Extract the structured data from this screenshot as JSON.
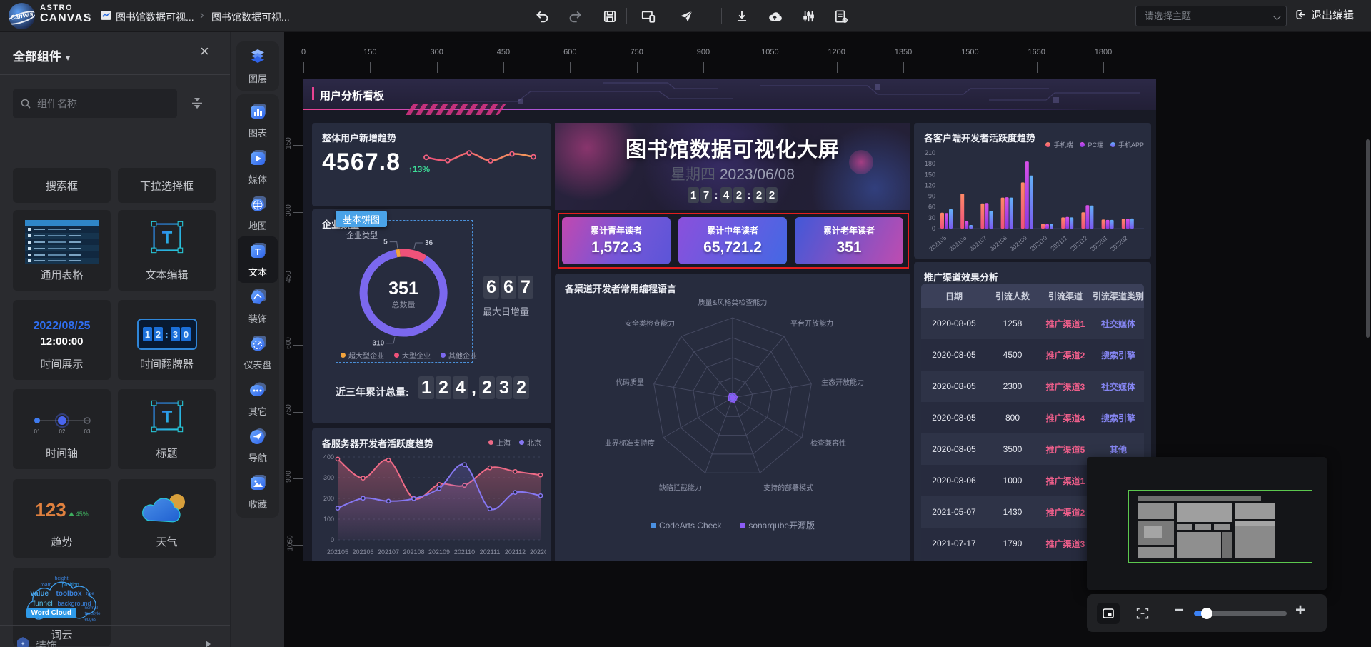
{
  "topbar": {
    "logo_text": "Canvas",
    "brand_top": "ASTRO",
    "brand_bottom": "CANVAS",
    "breadcrumb_tab1": "图书馆数据可视...",
    "breadcrumb_tab2": "图书馆数据可视...",
    "theme_placeholder": "请选择主题",
    "exit_label": "退出编辑"
  },
  "left_panel": {
    "title": "全部组件",
    "search_placeholder": "组件名称",
    "cards": [
      {
        "label": "搜索框"
      },
      {
        "label": "下拉选择框"
      },
      {
        "label": "通用表格"
      },
      {
        "label": "文本编辑"
      },
      {
        "label": "时间展示",
        "thumb_date": "2022/08/25",
        "thumb_time": "12:00:00"
      },
      {
        "label": "时间翻牌器",
        "thumb_clock": "12:30"
      },
      {
        "label": "时间轴",
        "steps": [
          "01",
          "02",
          "03"
        ]
      },
      {
        "label": "标题"
      },
      {
        "label": "趋势",
        "thumb_value": "123",
        "thumb_delta": "45%"
      },
      {
        "label": "天气"
      },
      {
        "label": "词云",
        "thumb_chip": "Word Cloud",
        "thumb_words": [
          "height",
          "roam",
          "position",
          "value",
          "toolbox",
          "type",
          "funnel",
          "background",
          "normal",
          "textstyle",
          "edges"
        ]
      }
    ],
    "footer_label": "装饰"
  },
  "icon_rail": {
    "layers_label": "图层",
    "items": [
      {
        "label": "图表"
      },
      {
        "label": "媒体"
      },
      {
        "label": "地图"
      },
      {
        "label": "文本"
      },
      {
        "label": "装饰"
      },
      {
        "label": "仪表盘"
      },
      {
        "label": "其它"
      },
      {
        "label": "导航"
      },
      {
        "label": "收藏"
      }
    ]
  },
  "canvas": {
    "h_ruler": [
      0,
      150,
      300,
      450,
      600,
      750,
      900,
      1050,
      1200,
      1350,
      1500,
      1650,
      1800
    ],
    "v_ruler": [
      150,
      300,
      450,
      600,
      750,
      900,
      1050
    ]
  },
  "dashboard": {
    "page_header": "用户分析看板",
    "title_block": {
      "title": "图书馆数据可视化大屏",
      "weekday": "星期四",
      "date": "2023/06/08",
      "clock": "17:42:22"
    },
    "stat_cards": [
      {
        "label": "累计青年读者",
        "value": "1,572.3"
      },
      {
        "label": "累计中年读者",
        "value": "65,721.2"
      },
      {
        "label": "累计老年读者",
        "value": "351"
      }
    ],
    "trend_panel": {
      "title": "整体用户新增趋势",
      "value": "4567.8",
      "delta": "↑13%"
    },
    "pie_panel": {
      "header": "企业数量",
      "tooltip_chip": "基本饼图",
      "max_daily_value": "667",
      "max_daily_label": "最大日增量",
      "total_label": "近三年累计总量:",
      "total_value": "124,232"
    }
  },
  "chart_data": [
    {
      "type": "line",
      "name": "整体用户新增趋势-sparkline",
      "x": [
        1,
        2,
        3,
        4,
        5,
        6
      ],
      "values": [
        58,
        45,
        76,
        44,
        72,
        60
      ],
      "ylim": [
        0,
        100
      ],
      "color": "#f0527a"
    },
    {
      "type": "pie",
      "title": "企业类型",
      "center_value": "351",
      "center_label": "总数量",
      "slices": [
        {
          "name": "超大型企业",
          "value": 5,
          "color": "#f2a33c"
        },
        {
          "name": "大型企业",
          "value": 36,
          "color": "#f0527a"
        },
        {
          "name": "其他企业",
          "value": 310,
          "color": "#7b68ee"
        }
      ]
    },
    {
      "type": "area",
      "title": "各服务器开发者活跃度趋势",
      "categories": [
        "202105",
        "202106",
        "202107",
        "202108",
        "202109",
        "202110",
        "202111",
        "202112",
        "202201"
      ],
      "series": [
        {
          "name": "上海",
          "color": "#ee6a86",
          "values": [
            390,
            298,
            385,
            200,
            268,
            263,
            348,
            330,
            313
          ]
        },
        {
          "name": "北京",
          "color": "#8677f2",
          "values": [
            153,
            201,
            187,
            199,
            248,
            363,
            150,
            229,
            213
          ]
        }
      ],
      "ylim": [
        0,
        400
      ],
      "yticks": [
        0,
        100,
        200,
        300,
        400
      ]
    },
    {
      "type": "radar",
      "title": "各渠道开发者常用编程语言",
      "labels": [
        "质量&风格类检查能力",
        "平台开放能力",
        "生态开放能力",
        "检查兼容性",
        "支持的部署模式",
        "缺陷拦截能力",
        "业界标准支持度",
        "代码质量",
        "安全类检查能力"
      ],
      "series": [
        {
          "name": "CodeArts Check",
          "color": "#4a90e2",
          "values": [
            4,
            3,
            4,
            3,
            4,
            3,
            4,
            3,
            4
          ]
        },
        {
          "name": "sonarqube开源版",
          "color": "#8b5cf6",
          "values": [
            6,
            5,
            6,
            5,
            6,
            5,
            6,
            5,
            6
          ]
        }
      ],
      "rlim": [
        0,
        100
      ]
    },
    {
      "type": "bar",
      "title": "各客户端开发者活跃度趋势",
      "categories": [
        "202105",
        "202106",
        "202107",
        "202108",
        "202109",
        "202110",
        "202111",
        "202112",
        "202201",
        "202202"
      ],
      "series": [
        {
          "name": "手机端",
          "color_top": "#ff8a66",
          "color_bottom": "#ef4f7e",
          "values": [
            44,
            97,
            70,
            86,
            128,
            13,
            31,
            45,
            25,
            27
          ]
        },
        {
          "name": "PC端",
          "color_top": "#d84fe8",
          "color_bottom": "#8a3ae0",
          "values": [
            43,
            20,
            71,
            87,
            186,
            12,
            32,
            65,
            24,
            27
          ]
        },
        {
          "name": "手机APP",
          "color_top": "#62b0f8",
          "color_bottom": "#7a5af0",
          "values": [
            54,
            10,
            49,
            86,
            147,
            12,
            31,
            64,
            24,
            28
          ]
        }
      ],
      "ylim": [
        0,
        210
      ],
      "yticks": [
        0,
        30,
        60,
        90,
        120,
        150,
        180,
        210
      ]
    },
    {
      "type": "table",
      "title": "推广渠道效果分析",
      "headers": [
        "日期",
        "引流人数",
        "引流渠道",
        "引流渠道类别"
      ],
      "rows": [
        [
          "2020-08-05",
          "1258",
          "推广渠道1",
          "社交媒体"
        ],
        [
          "2020-08-05",
          "4500",
          "推广渠道2",
          "搜索引擎"
        ],
        [
          "2020-08-05",
          "2300",
          "推广渠道3",
          "社交媒体"
        ],
        [
          "2020-08-05",
          "800",
          "推广渠道4",
          "搜索引擎"
        ],
        [
          "2020-08-05",
          "3500",
          "推广渠道5",
          "其他"
        ],
        [
          "2020-08-06",
          "1000",
          "推广渠道1",
          ""
        ],
        [
          "2021-05-07",
          "1430",
          "推广渠道2",
          ""
        ],
        [
          "2021-07-17",
          "1790",
          "推广渠道3",
          ""
        ]
      ]
    }
  ],
  "colors": {
    "accent_blue": "#4aa3e8",
    "selection_red": "#e41e1e",
    "selection_blue_dashed": "#4a90d9",
    "delta_green": "#3ddc97",
    "table_channel_pink": "#ed5e8a",
    "table_category_blue": "#8585f2",
    "minimap_viewport_green": "#5cc84e"
  }
}
